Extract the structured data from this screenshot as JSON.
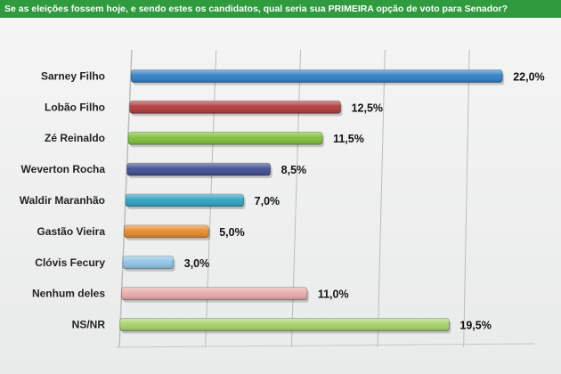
{
  "header": {
    "question": "Se as eleições fossem hoje, e sendo estes os candidatos, qual seria sua PRIMEIRA opção de voto para Senador?"
  },
  "chart_data": {
    "type": "bar",
    "orientation": "horizontal",
    "title": "Se as eleições fossem hoje, e sendo estes os candidatos, qual seria sua PRIMEIRA opção de voto para Senador?",
    "xlim": [
      0,
      22
    ],
    "grid": true,
    "categories": [
      "Sarney Filho",
      "Lobão Filho",
      "Zé Reinaldo",
      "Weverton Rocha",
      "Waldir Maranhão",
      "Gastão Vieira",
      "Clóvis Fecury",
      "Nenhum deles",
      "NS/NR"
    ],
    "values": [
      22.0,
      12.5,
      11.5,
      8.5,
      7.0,
      5.0,
      3.0,
      11.0,
      19.5
    ],
    "value_labels": [
      "22,0%",
      "12,5%",
      "11,5%",
      "8,5%",
      "7,0%",
      "5,0%",
      "3,0%",
      "11,0%",
      "19,5%"
    ],
    "colors": [
      "#2e7fc4",
      "#b03a3a",
      "#7fbf3a",
      "#3f4d8f",
      "#2ea2c0",
      "#e8892a",
      "#8ec3e6",
      "#e9a9a9",
      "#a6d36a"
    ]
  }
}
